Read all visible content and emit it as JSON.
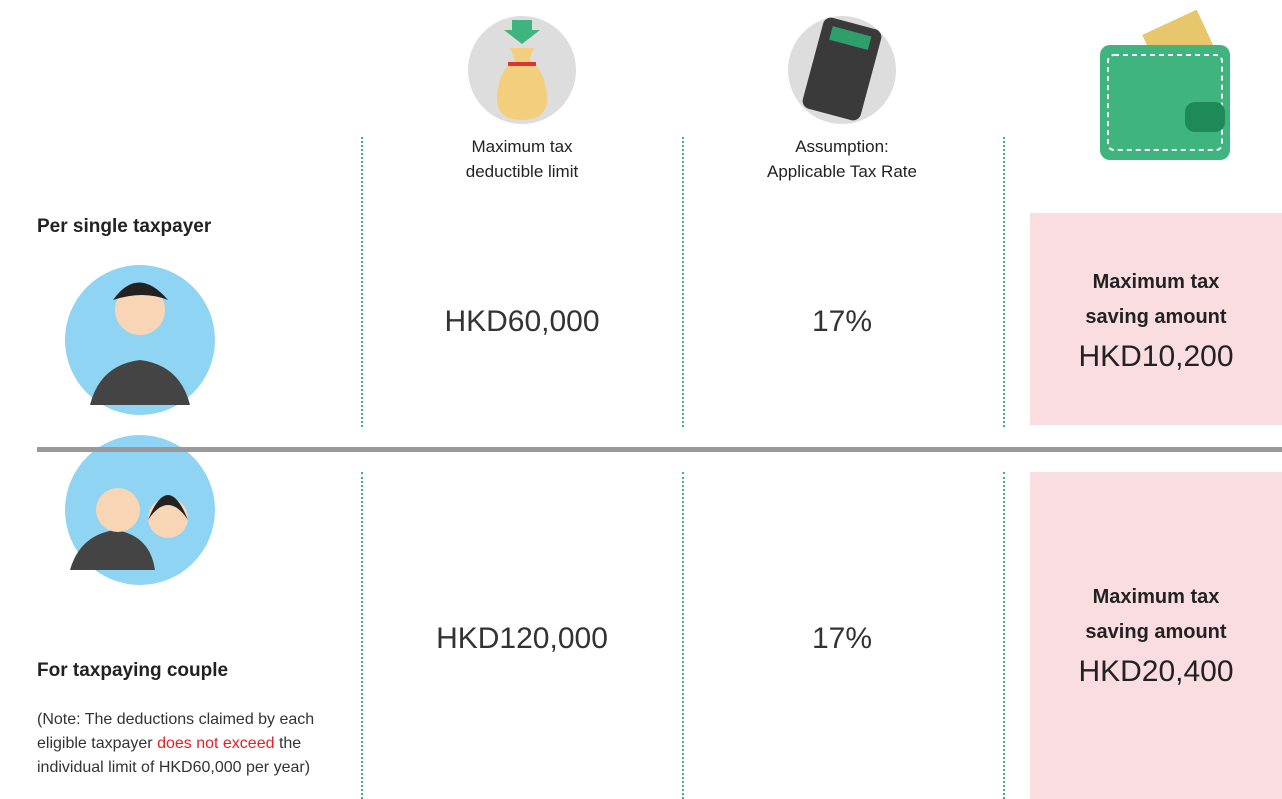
{
  "columns": [
    {
      "header_lines": [
        "Maximum tax",
        "deductible limit"
      ]
    },
    {
      "header_lines": [
        "Assumption:",
        "Applicable Tax Rate"
      ]
    }
  ],
  "rows": [
    {
      "label": "Per single taxpayer",
      "limit": "HKD60,000",
      "rate": "17%",
      "saving_label_lines": [
        "Maximum tax",
        "saving amount"
      ],
      "saving": "HKD10,200"
    },
    {
      "label": "For taxpaying couple",
      "limit": "HKD120,000",
      "rate": "17%",
      "saving_label_lines": [
        "Maximum tax",
        "saving amount"
      ],
      "saving": "HKD20,400",
      "note": [
        "(Note: The deductions claimed by each eligible taxpayer ",
        "does not exceed",
        " the individual limit of HKD60,000 per year)"
      ]
    }
  ]
}
